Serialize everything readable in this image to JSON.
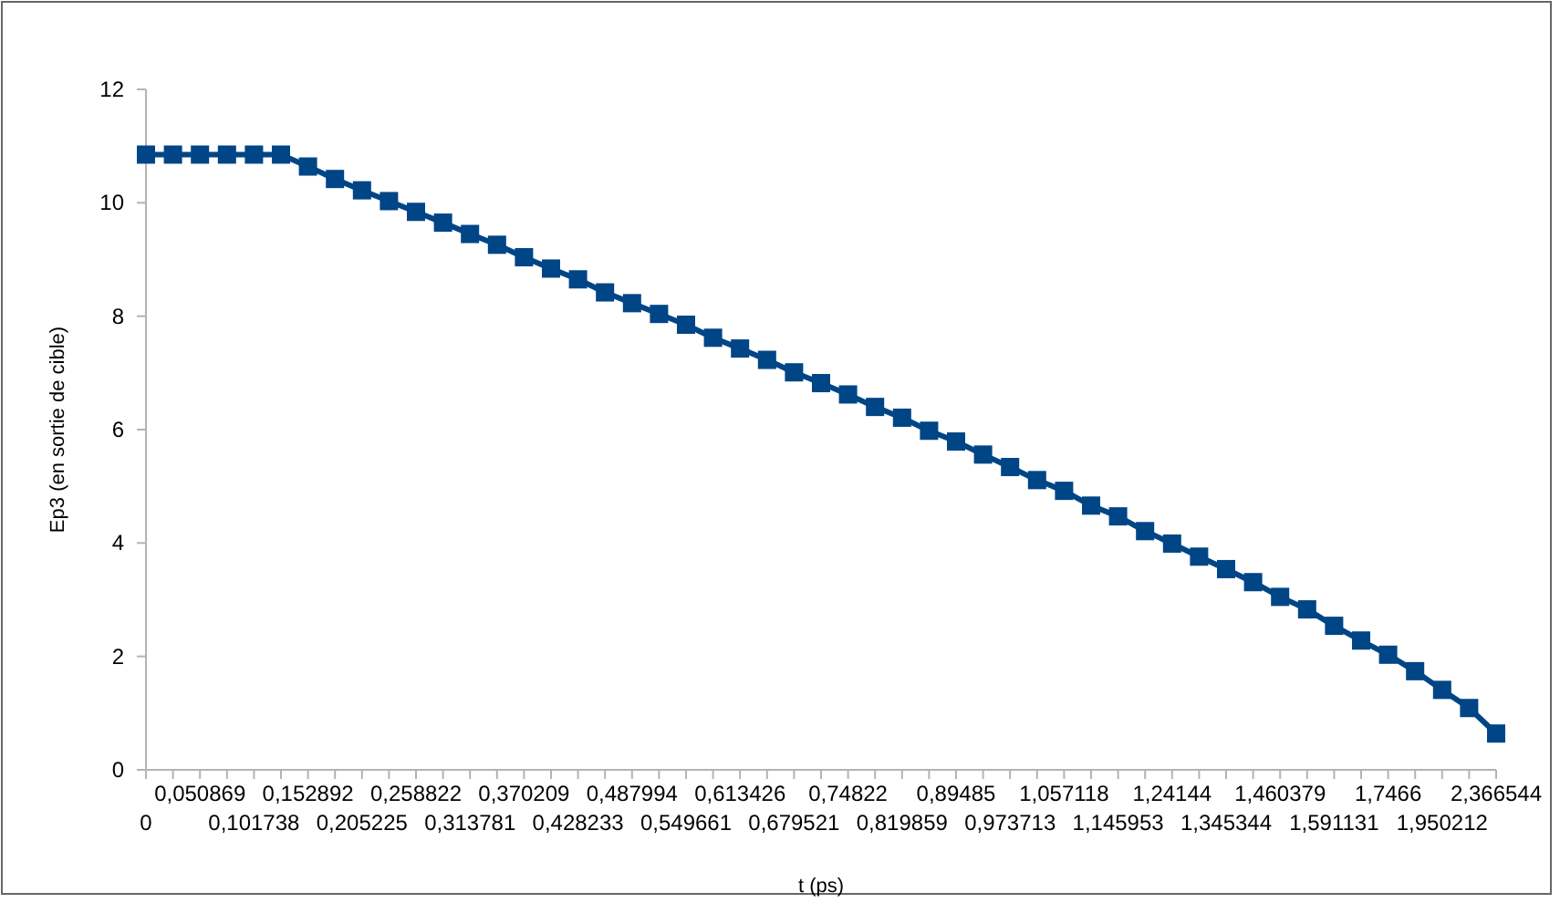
{
  "chart_data": {
    "type": "line",
    "xlabel": "t (ps)",
    "ylabel": "Ep3 (en sortie de cible)",
    "categories": [
      "0",
      null,
      "0,050869",
      null,
      "0,101738",
      null,
      "0,152892",
      null,
      "0,205225",
      null,
      "0,258822",
      null,
      "0,313781",
      null,
      "0,370209",
      null,
      "0,428233",
      null,
      "0,487994",
      null,
      "0,549661",
      null,
      "0,613426",
      null,
      "0,679521",
      null,
      "0,74822",
      null,
      "0,819859",
      null,
      "0,89485",
      null,
      "0,973713",
      null,
      "1,057118",
      null,
      "1,145953",
      null,
      "1,24144",
      null,
      "1,345344",
      null,
      "1,460379",
      null,
      "1,591131",
      null,
      "1,7466",
      null,
      "1,950212",
      null,
      "2,366544"
    ],
    "series": [
      {
        "color": "#004586",
        "values": [
          10.85,
          10.85,
          10.85,
          10.85,
          10.85,
          10.85,
          10.64,
          10.42,
          10.22,
          10.03,
          9.84,
          9.65,
          9.45,
          9.26,
          9.04,
          8.84,
          8.65,
          8.42,
          8.23,
          8.04,
          7.85,
          7.62,
          7.43,
          7.23,
          7.01,
          6.82,
          6.62,
          6.4,
          6.21,
          5.98,
          5.79,
          5.56,
          5.34,
          5.11,
          4.92,
          4.66,
          4.47,
          4.21,
          3.99,
          3.76,
          3.54,
          3.31,
          3.05,
          2.83,
          2.54,
          2.28,
          2.03,
          1.74,
          1.41,
          1.09,
          0.64
        ]
      }
    ],
    "ylim": [
      0,
      12
    ],
    "yticks": [
      0,
      2,
      4,
      6,
      8,
      10,
      12
    ],
    "marker": "square",
    "line_style": "solid"
  }
}
